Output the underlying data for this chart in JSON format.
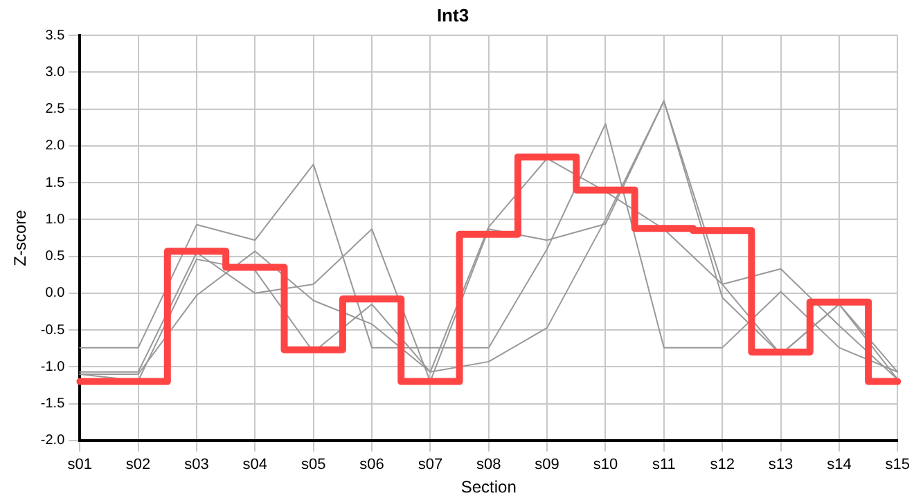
{
  "chart_data": {
    "type": "line",
    "title": "Int3",
    "xlabel": "Section",
    "ylabel": "Z-score",
    "categories": [
      "s01",
      "s02",
      "s03",
      "s04",
      "s05",
      "s06",
      "s07",
      "s08",
      "s09",
      "s10",
      "s11",
      "s12",
      "s13",
      "s14",
      "s15"
    ],
    "ylim": [
      -2,
      3.5
    ],
    "yticks": [
      {
        "value": -2,
        "label": "-2.0"
      },
      {
        "value": -1.5,
        "label": "-1.5"
      },
      {
        "value": -1,
        "label": "-1.0"
      },
      {
        "value": -0.5,
        "label": "-0.5"
      },
      {
        "value": 0,
        "label": "0.0"
      },
      {
        "value": 0.5,
        "label": "0.5"
      },
      {
        "value": 1,
        "label": "1.0"
      },
      {
        "value": 1.5,
        "label": "1.5"
      },
      {
        "value": 2,
        "label": "2.0"
      },
      {
        "value": 2.5,
        "label": "2.5"
      },
      {
        "value": 3,
        "label": "3.0"
      },
      {
        "value": 3.5,
        "label": "3.5"
      }
    ],
    "grid": true,
    "legend": false,
    "marker": "none",
    "series": [
      {
        "color": "#999999",
        "values": [
          -0.74,
          -0.74,
          0.93,
          0.72,
          1.75,
          -0.74,
          -0.74,
          -0.74,
          0.6,
          2.3,
          -0.74,
          -0.74,
          0.02,
          -0.74,
          -1.07
        ]
      },
      {
        "color": "#999999",
        "values": [
          -1.07,
          -1.07,
          0.55,
          0.0,
          0.12,
          0.87,
          -1.2,
          0.87,
          0.72,
          0.94,
          2.61,
          -0.06,
          -0.83,
          -0.15,
          -1.07
        ]
      },
      {
        "color": "#999999",
        "values": [
          -1.1,
          -1.19,
          0.46,
          0.31,
          -0.8,
          -0.15,
          -1.07,
          0.9,
          1.83,
          1.38,
          0.87,
          0.12,
          -0.83,
          -0.15,
          -1.17
        ]
      },
      {
        "color": "#999999",
        "values": [
          -1.1,
          -1.1,
          -0.03,
          0.57,
          -0.1,
          -0.42,
          -1.07,
          -0.93,
          -0.47,
          1.0,
          2.61,
          0.12,
          0.33,
          -0.44,
          -1.17
        ]
      },
      {
        "type": "step",
        "color": "#ff4444",
        "values": [
          -1.2,
          -1.2,
          0.57,
          0.35,
          -0.77,
          -0.08,
          -1.2,
          0.8,
          1.85,
          1.4,
          0.88,
          0.85,
          -0.8,
          -0.12,
          -1.2
        ]
      }
    ]
  }
}
